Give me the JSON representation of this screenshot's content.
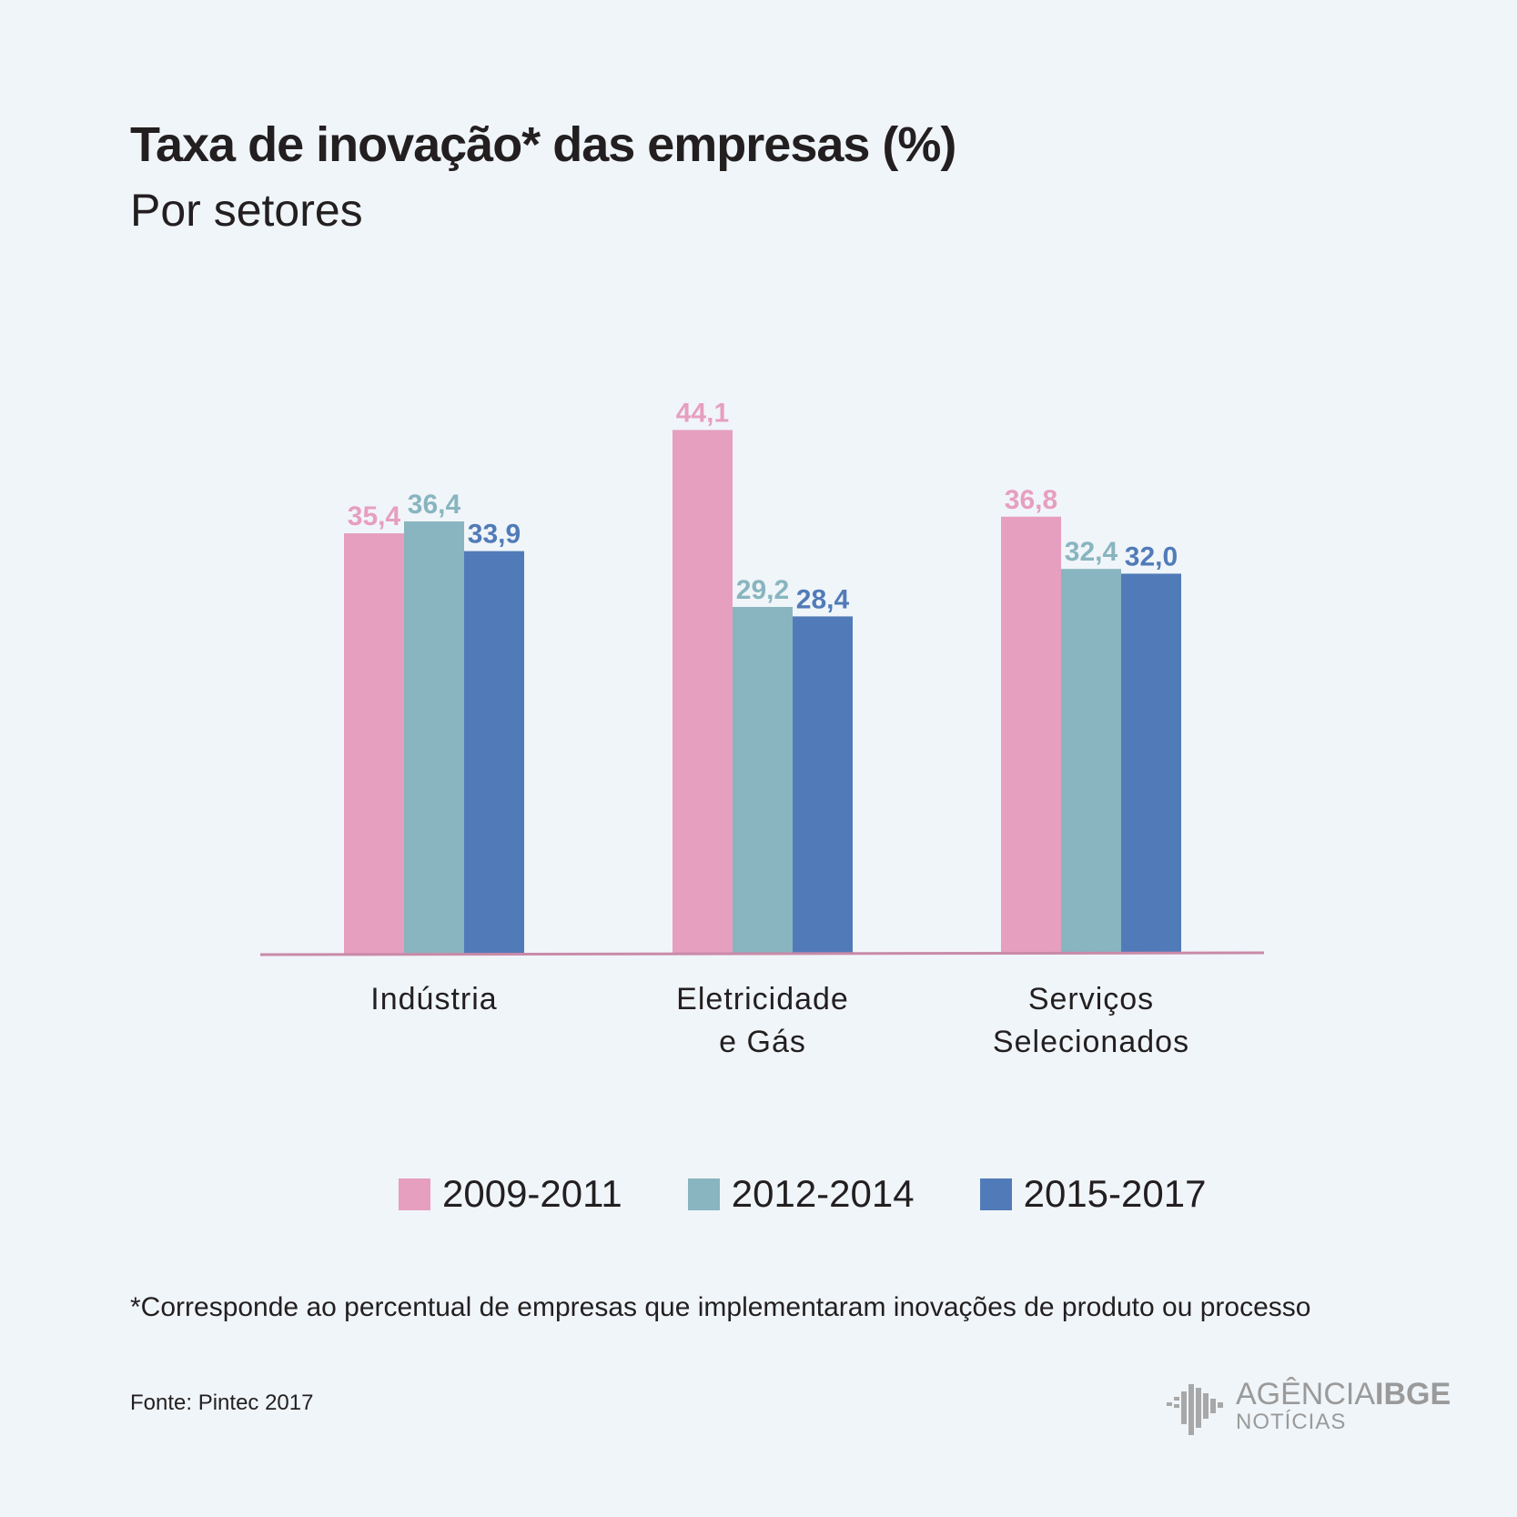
{
  "chart_data": {
    "type": "bar",
    "title": "Taxa de inovação* das empresas (%)",
    "subtitle": "Por setores",
    "categories": [
      [
        "Indústria"
      ],
      [
        "Eletricidade",
        "e Gás"
      ],
      [
        "Serviços",
        "Selecionados"
      ]
    ],
    "series": [
      {
        "name": "2009-2011",
        "color": "#e69fbf",
        "values": [
          35.4,
          44.1,
          36.8
        ],
        "labels": [
          "35,4",
          "44,1",
          "36,8"
        ]
      },
      {
        "name": "2012-2014",
        "color": "#88b5bf",
        "values": [
          36.4,
          29.2,
          32.4
        ],
        "labels": [
          "36,4",
          "29,2",
          "32,4"
        ]
      },
      {
        "name": "2015-2017",
        "color": "#517bb8",
        "values": [
          33.9,
          28.4,
          32.0
        ],
        "labels": [
          "33,9",
          "28,4",
          "32,0"
        ]
      }
    ],
    "legend": "bottom-center",
    "grid": false
  },
  "footnote": "*Corresponde ao percentual de empresas que implementaram inovações de produto ou processo",
  "source": "Fonte:  Pintec 2017",
  "logo": {
    "line1_light": "AGÊNCIA",
    "line1_bold": "IBGE",
    "line2": "NOTÍCIAS"
  },
  "colors": {
    "background": "#f0f5f9",
    "baseline": "#c98aa8",
    "text": "#231f20"
  }
}
